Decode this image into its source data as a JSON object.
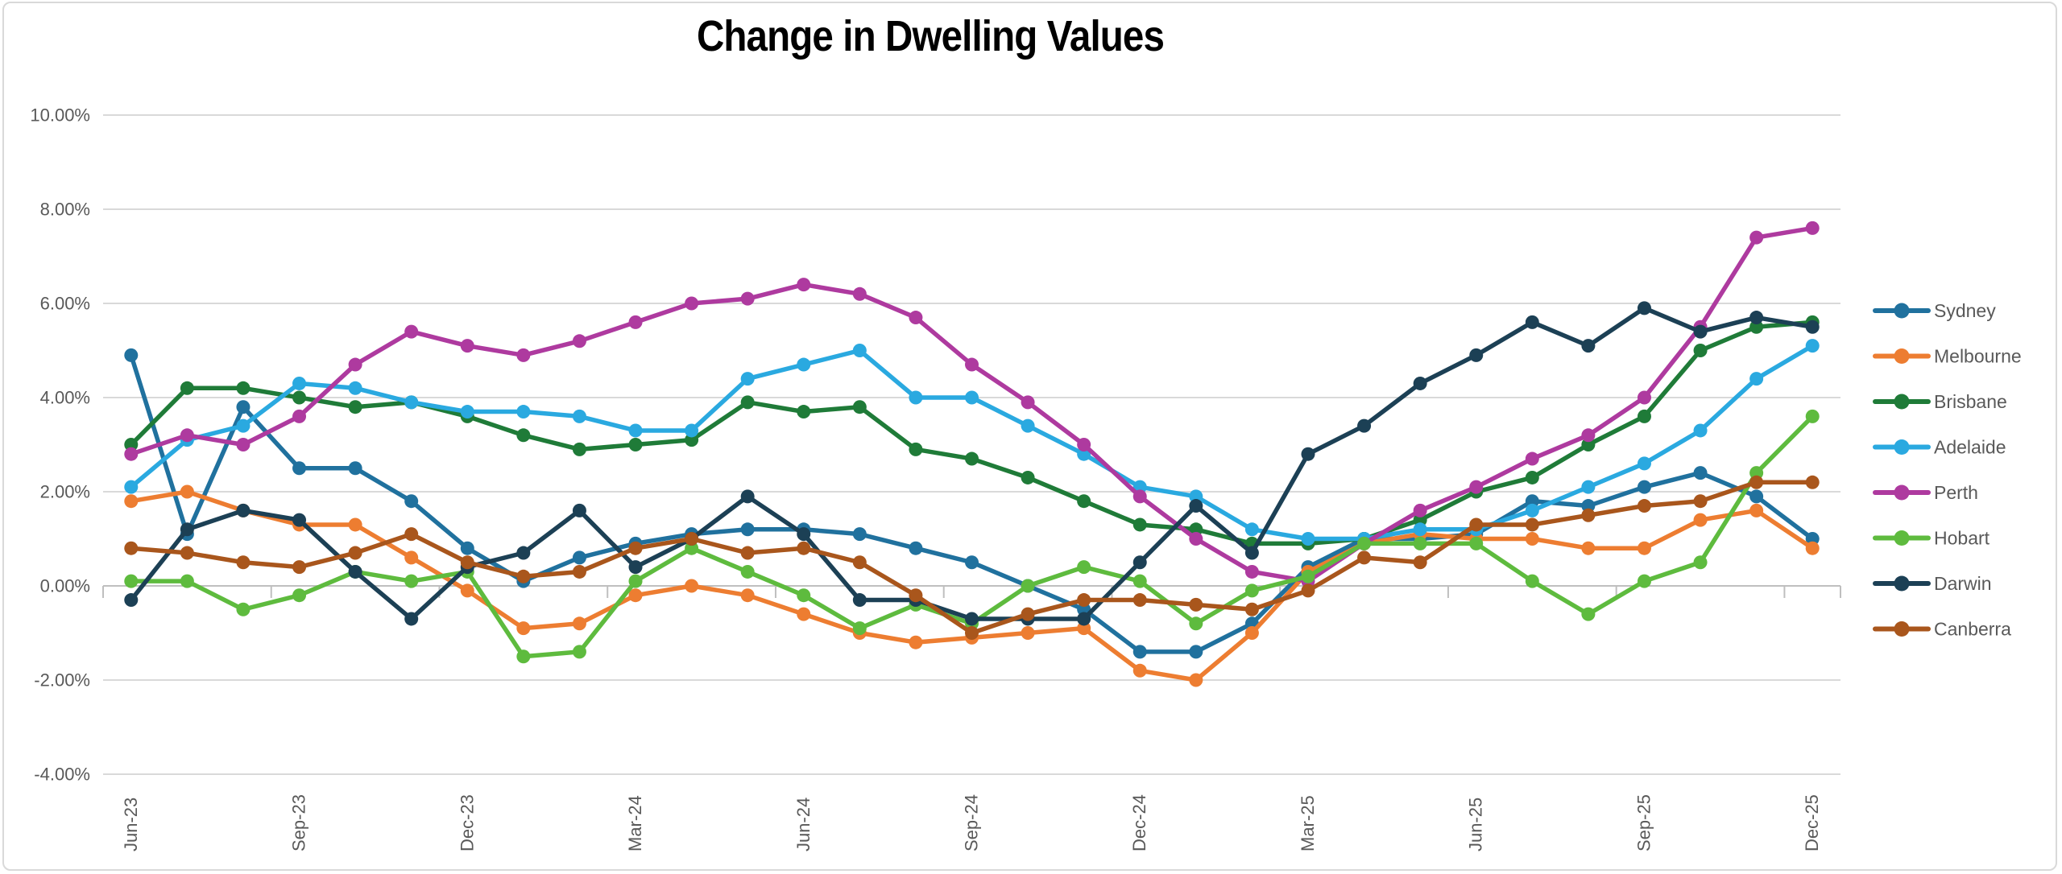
{
  "title": "Change in Dwelling Values",
  "colors": {
    "grid": "#D9D9D9",
    "axis": "#BFBFBF",
    "tick_label": "#595959",
    "legend_text": "#595959",
    "title_text": "#000000",
    "background": "#FFFFFF"
  },
  "axes": {
    "y_tick_labels": [
      "10.00%",
      "8.00%",
      "6.00%",
      "4.00%",
      "2.00%",
      "0.00%",
      "-2.00%",
      "-4.00%"
    ],
    "x_tick_labels": [
      "Jun-23",
      "Sep-23",
      "Dec-23",
      "Mar-24",
      "Jun-24",
      "Sep-24",
      "Dec-24",
      "Mar-25",
      "Jun-25",
      "Sep-25",
      "Dec-25"
    ]
  },
  "legend": {
    "position": "right",
    "items": [
      "Sydney",
      "Melbourne",
      "Brisbane",
      "Adelaide",
      "Perth",
      "Hobart",
      "Darwin",
      "Canberra"
    ]
  },
  "chart_data": {
    "type": "line",
    "title": "Change in Dwelling Values",
    "xlabel": "",
    "ylabel": "",
    "ylim": [
      -4,
      10
    ],
    "ytick_step": 2,
    "ytick_format": "0.00%",
    "grid": true,
    "markers": true,
    "legend_position": "right",
    "x": [
      "Jun-23",
      "Jul-23",
      "Aug-23",
      "Sep-23",
      "Oct-23",
      "Nov-23",
      "Dec-23",
      "Jan-24",
      "Feb-24",
      "Mar-24",
      "Apr-24",
      "May-24",
      "Jun-24",
      "Jul-24",
      "Aug-24",
      "Sep-24",
      "Oct-24",
      "Nov-24",
      "Dec-24",
      "Jan-25",
      "Feb-25",
      "Mar-25",
      "Apr-25",
      "May-25",
      "Jun-25",
      "Jul-25",
      "Aug-25",
      "Sep-25",
      "Oct-25",
      "Nov-25",
      "Dec-25"
    ],
    "x_label_interval": 3,
    "series": [
      {
        "name": "Sydney",
        "color": "#20719E",
        "values": [
          4.9,
          1.1,
          3.8,
          2.5,
          2.5,
          1.8,
          0.8,
          0.1,
          0.6,
          0.9,
          1.1,
          1.2,
          1.2,
          1.1,
          0.8,
          0.5,
          0.0,
          -0.5,
          -1.4,
          -1.4,
          -0.8,
          0.4,
          1.0,
          1.0,
          1.1,
          1.8,
          1.7,
          2.1,
          2.4,
          1.9,
          1.0
        ]
      },
      {
        "name": "Melbourne",
        "color": "#ED7D31",
        "values": [
          1.8,
          2.0,
          1.6,
          1.3,
          1.3,
          0.6,
          -0.1,
          -0.9,
          -0.8,
          -0.2,
          0.0,
          -0.2,
          -0.6,
          -1.0,
          -1.2,
          -1.1,
          -1.0,
          -0.9,
          -1.8,
          -2.0,
          -1.0,
          0.3,
          0.9,
          1.1,
          1.0,
          1.0,
          0.8,
          0.8,
          1.4,
          1.6,
          0.8
        ]
      },
      {
        "name": "Brisbane",
        "color": "#1F7B38",
        "values": [
          3.0,
          4.2,
          4.2,
          4.0,
          3.8,
          3.9,
          3.6,
          3.2,
          2.9,
          3.0,
          3.1,
          3.9,
          3.7,
          3.8,
          2.9,
          2.7,
          2.3,
          1.8,
          1.3,
          1.2,
          0.9,
          0.9,
          1.0,
          1.4,
          2.0,
          2.3,
          3.0,
          3.6,
          5.0,
          5.5,
          5.6
        ]
      },
      {
        "name": "Adelaide",
        "color": "#2AA9E0",
        "values": [
          2.1,
          3.1,
          3.4,
          4.3,
          4.2,
          3.9,
          3.7,
          3.7,
          3.6,
          3.3,
          3.3,
          4.4,
          4.7,
          5.0,
          4.0,
          4.0,
          3.4,
          2.8,
          2.1,
          1.9,
          1.2,
          1.0,
          1.0,
          1.2,
          1.2,
          1.6,
          2.1,
          2.6,
          3.3,
          4.4,
          5.1
        ]
      },
      {
        "name": "Perth",
        "color": "#AE3A9F",
        "values": [
          2.8,
          3.2,
          3.0,
          3.6,
          4.7,
          5.4,
          5.1,
          4.9,
          5.2,
          5.6,
          6.0,
          6.1,
          6.4,
          6.2,
          5.7,
          4.7,
          3.9,
          3.0,
          1.9,
          1.0,
          0.3,
          0.1,
          0.9,
          1.6,
          2.1,
          2.7,
          3.2,
          4.0,
          5.5,
          7.4,
          7.6
        ]
      },
      {
        "name": "Hobart",
        "color": "#5EBB3E",
        "values": [
          0.1,
          0.1,
          -0.5,
          -0.2,
          0.3,
          0.1,
          0.3,
          -1.5,
          -1.4,
          0.1,
          0.8,
          0.3,
          -0.2,
          -0.9,
          -0.4,
          -0.8,
          0.0,
          0.4,
          0.1,
          -0.8,
          -0.1,
          0.2,
          0.9,
          0.9,
          0.9,
          0.1,
          -0.6,
          0.1,
          0.5,
          2.4,
          3.6
        ]
      },
      {
        "name": "Darwin",
        "color": "#1C4055",
        "values": [
          -0.3,
          1.2,
          1.6,
          1.4,
          0.3,
          -0.7,
          0.4,
          0.7,
          1.6,
          0.4,
          1.0,
          1.9,
          1.1,
          -0.3,
          -0.3,
          -0.7,
          -0.7,
          -0.7,
          0.5,
          1.7,
          0.7,
          2.8,
          3.4,
          4.3,
          4.9,
          5.6,
          5.1,
          5.9,
          5.4,
          5.7,
          5.5
        ]
      },
      {
        "name": "Canberra",
        "color": "#A9561C",
        "values": [
          0.8,
          0.7,
          0.5,
          0.4,
          0.7,
          1.1,
          0.5,
          0.2,
          0.3,
          0.8,
          1.0,
          0.7,
          0.8,
          0.5,
          -0.2,
          -1.0,
          -0.6,
          -0.3,
          -0.3,
          -0.4,
          -0.5,
          -0.1,
          0.6,
          0.5,
          1.3,
          1.3,
          1.5,
          1.7,
          1.8,
          2.2,
          2.2
        ]
      }
    ]
  }
}
